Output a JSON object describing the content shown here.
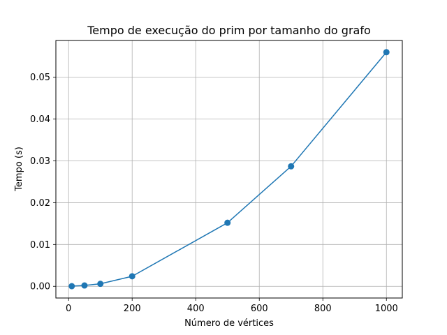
{
  "chart_data": {
    "type": "line",
    "title": "Tempo de execução do prim por tamanho do grafo",
    "xlabel": "Número de vértices",
    "ylabel": "Tempo (s)",
    "x": [
      10,
      50,
      100,
      200,
      500,
      700,
      1000
    ],
    "series": [
      {
        "values": [
          3e-05,
          0.0002,
          0.0006,
          0.0024,
          0.0152,
          0.0287,
          0.056
        ]
      }
    ],
    "xlim": [
      -40,
      1050
    ],
    "ylim": [
      -0.0028,
      0.0588
    ],
    "xticks": [
      0,
      200,
      400,
      600,
      800,
      1000
    ],
    "yticks": [
      0.0,
      0.01,
      0.02,
      0.03,
      0.04,
      0.05
    ],
    "xtick_labels": [
      "0",
      "200",
      "400",
      "600",
      "800",
      "1000"
    ],
    "ytick_labels": [
      "0.00",
      "0.01",
      "0.02",
      "0.03",
      "0.04",
      "0.05"
    ],
    "grid": true,
    "marker": "circle",
    "colors": {
      "line": "#1f77b4",
      "grid": "#b0b0b0",
      "axes": "#000000"
    }
  }
}
